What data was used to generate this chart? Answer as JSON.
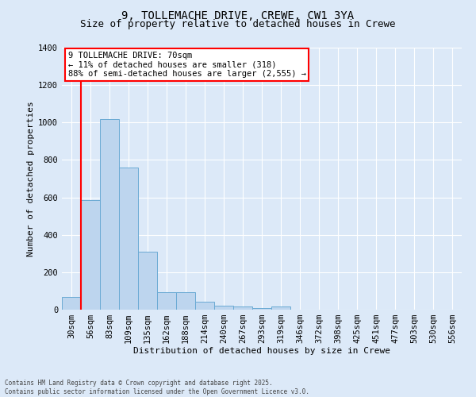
{
  "title_line1": "9, TOLLEMACHE DRIVE, CREWE, CW1 3YA",
  "title_line2": "Size of property relative to detached houses in Crewe",
  "xlabel": "Distribution of detached houses by size in Crewe",
  "ylabel": "Number of detached properties",
  "categories": [
    "30sqm",
    "56sqm",
    "83sqm",
    "109sqm",
    "135sqm",
    "162sqm",
    "188sqm",
    "214sqm",
    "240sqm",
    "267sqm",
    "293sqm",
    "319sqm",
    "346sqm",
    "372sqm",
    "398sqm",
    "425sqm",
    "451sqm",
    "477sqm",
    "503sqm",
    "530sqm",
    "556sqm"
  ],
  "values": [
    70,
    585,
    1020,
    760,
    310,
    95,
    95,
    42,
    22,
    18,
    10,
    15,
    0,
    0,
    0,
    0,
    0,
    0,
    0,
    0,
    0
  ],
  "bar_color": "#bdd5ee",
  "bar_edge_color": "#6aaad4",
  "vline_color": "red",
  "vline_position": 1.5,
  "ylim": [
    0,
    1400
  ],
  "yticks": [
    0,
    200,
    400,
    600,
    800,
    1000,
    1200,
    1400
  ],
  "annotation_text": "9 TOLLEMACHE DRIVE: 70sqm\n← 11% of detached houses are smaller (318)\n88% of semi-detached houses are larger (2,555) →",
  "annotation_box_color": "white",
  "annotation_box_edge_color": "red",
  "footer_line1": "Contains HM Land Registry data © Crown copyright and database right 2025.",
  "footer_line2": "Contains public sector information licensed under the Open Government Licence v3.0.",
  "background_color": "#dce9f8",
  "plot_background_color": "#dce9f8",
  "grid_color": "white",
  "title1_fontsize": 10,
  "title2_fontsize": 9,
  "axis_label_fontsize": 8,
  "tick_fontsize": 7.5,
  "annotation_fontsize": 7.5,
  "footer_fontsize": 5.5
}
